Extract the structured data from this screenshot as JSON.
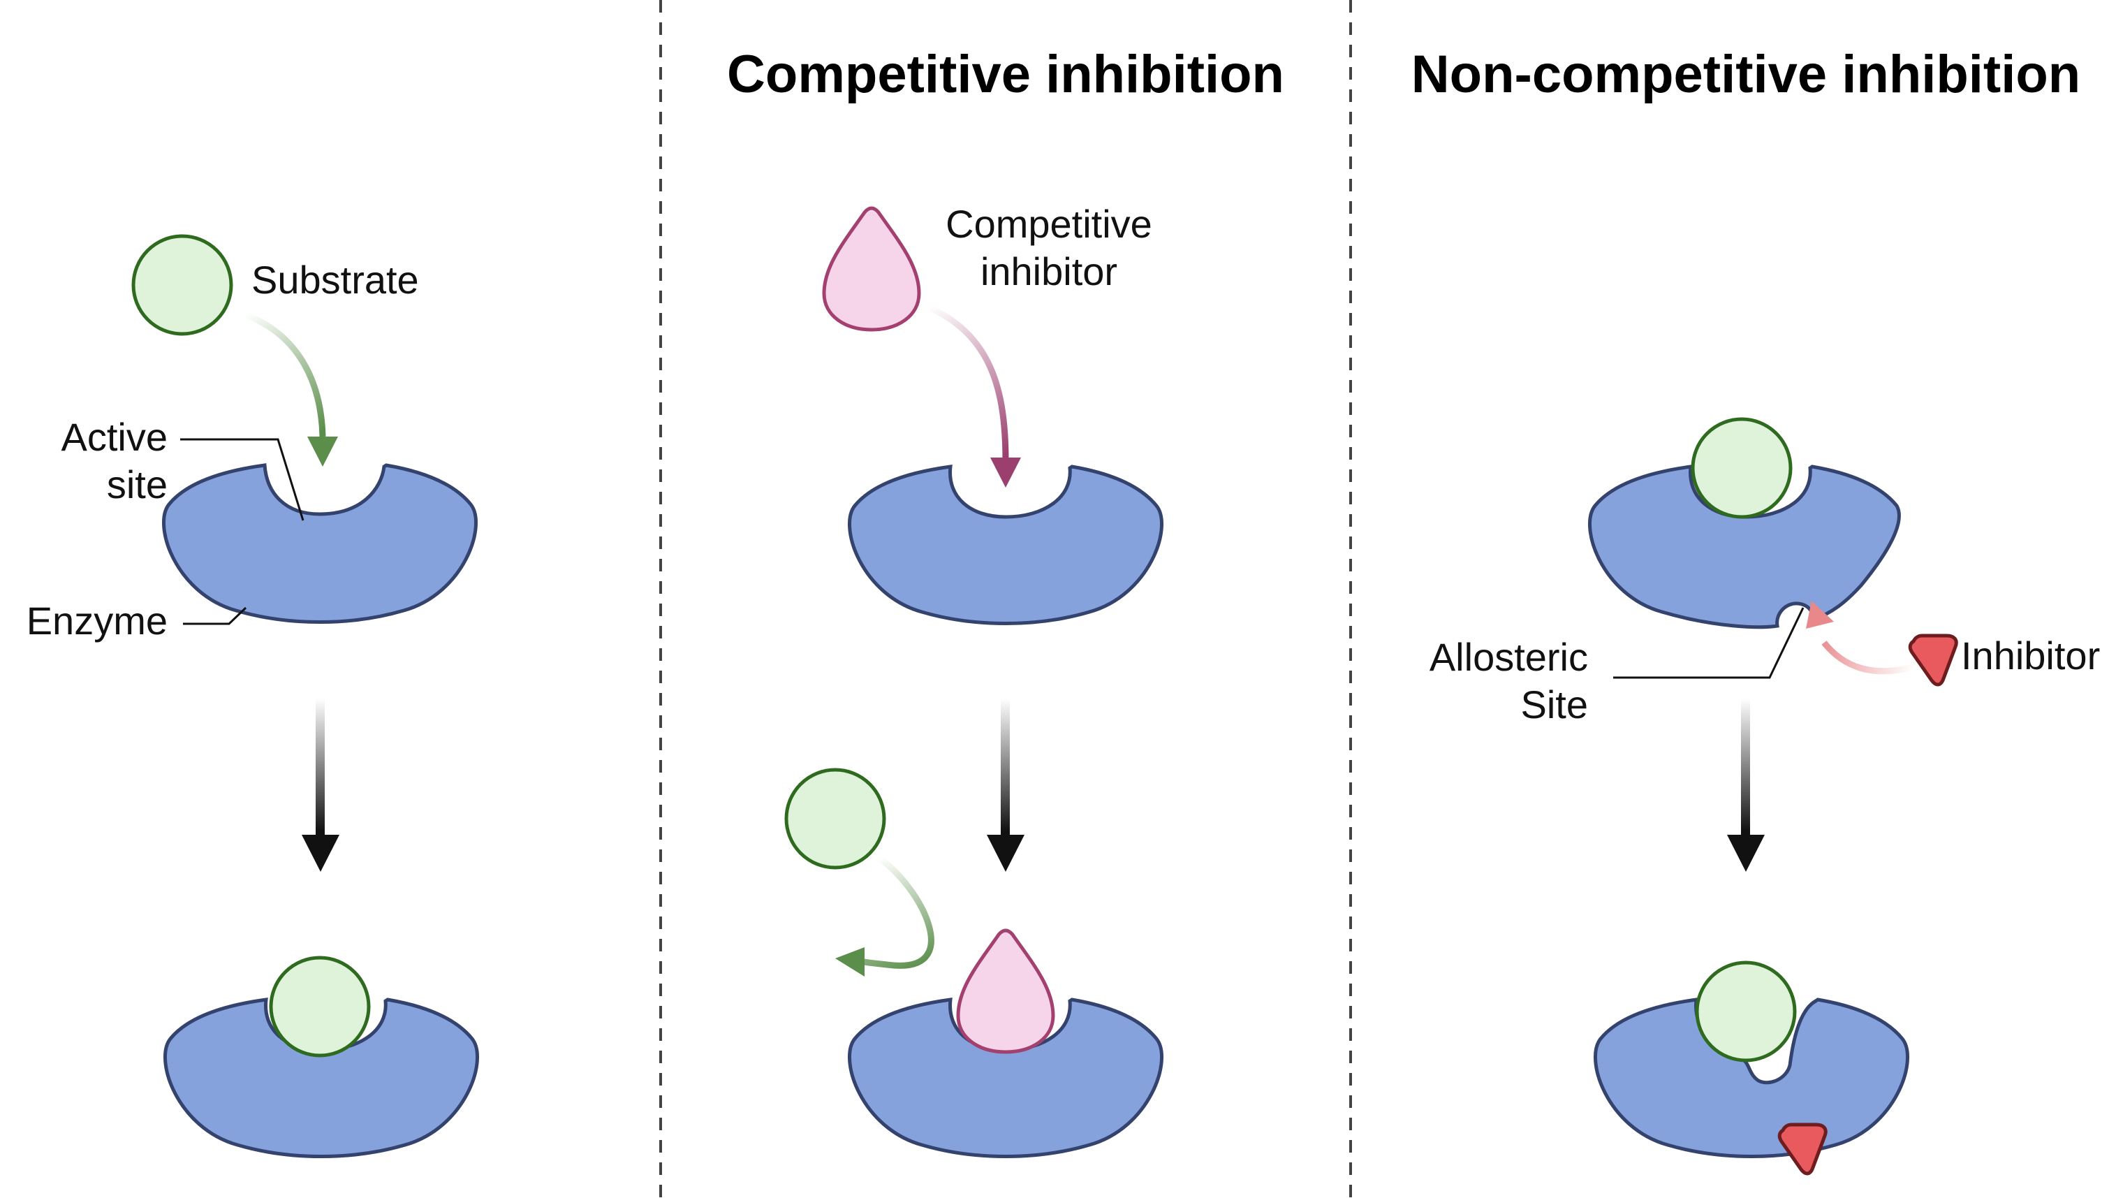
{
  "panels": [
    {
      "id": "normal",
      "title": "",
      "labels": {
        "substrate": "Substrate",
        "active_site_line1": "Active",
        "active_site_line2": "site",
        "enzyme": "Enzyme"
      }
    },
    {
      "id": "competitive",
      "title": "Competitive inhibition",
      "labels": {
        "inhibitor_line1": "Competitive",
        "inhibitor_line2": "inhibitor"
      }
    },
    {
      "id": "non_competitive",
      "title": "Non-competitive inhibition",
      "labels": {
        "allosteric_line1": "Allosteric",
        "allosteric_line2": "Site",
        "inhibitor": "Inhibitor"
      }
    }
  ],
  "icons": {
    "substrate": "green-circle",
    "competitive_inhibitor": "pink-drop",
    "non_competitive_inhibitor": "red-rounded-triangle",
    "enzyme": "blue-enzyme-blob",
    "reaction_arrow": "black-down-arrow",
    "path_arrow": "curved-arrow"
  },
  "colors": {
    "enzyme_fill": "#85A2DD",
    "enzyme_stroke": "#34426E",
    "substrate_fill": "#DEF3DA",
    "substrate_stroke": "#2F6B1F",
    "substrate_arrow": "#5A8E4A",
    "comp_inhibitor_fill": "#F6D4EA",
    "comp_inhibitor_stroke": "#A3406F",
    "comp_arrow": "#9B3F6E",
    "noncomp_inhibitor_fill": "#E85A5E",
    "noncomp_inhibitor_stroke": "#6E1D1F",
    "noncomp_arrow": "#E8888B",
    "divider": "#444444",
    "reaction_arrow": "#111111"
  }
}
